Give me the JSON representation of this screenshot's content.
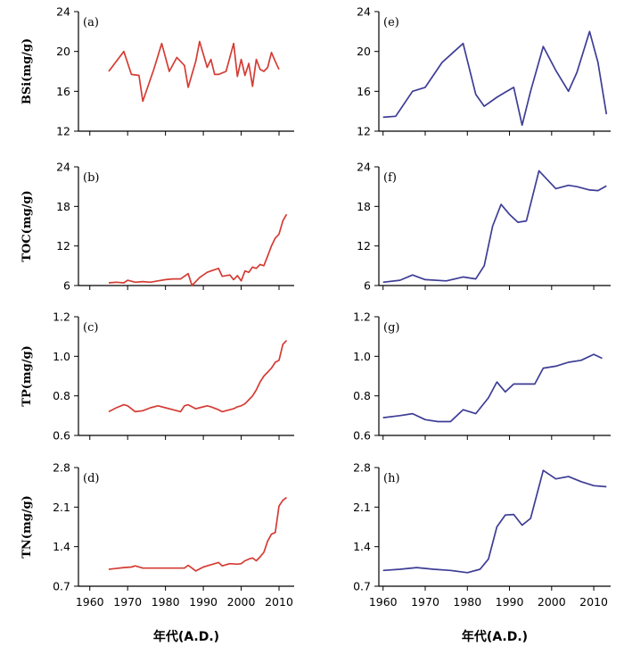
{
  "colors": {
    "red": "#d43c34",
    "blue": "#3d3d96",
    "axis": "#000000"
  },
  "chart_data": [
    {
      "id": "a",
      "type": "line",
      "letter": "(a)",
      "ylabel": "BSi(mg/g)",
      "xlabel": "",
      "color": "#d43c34",
      "ylim": [
        12,
        24
      ],
      "yticks": [
        "12",
        "16",
        "20",
        "24"
      ],
      "xlim": [
        1957,
        2014
      ],
      "xticks": [
        "1960",
        "1970",
        "1980",
        "1990",
        "2000",
        "2010"
      ],
      "x": [
        1965,
        1969,
        1971,
        1973,
        1974,
        1977,
        1979,
        1981,
        1983,
        1985,
        1986,
        1988,
        1989,
        1991,
        1992,
        1993,
        1994,
        1996,
        1998,
        1999,
        2000,
        2001,
        2002,
        2003,
        2004,
        2005,
        2006,
        2007,
        2008,
        2009,
        2010
      ],
      "y": [
        18.0,
        20.0,
        17.7,
        17.6,
        15.0,
        18.3,
        20.8,
        18.0,
        19.4,
        18.6,
        16.4,
        19.0,
        21.0,
        18.4,
        19.2,
        17.7,
        17.7,
        18.0,
        20.8,
        17.5,
        19.2,
        17.6,
        18.8,
        16.5,
        19.2,
        18.2,
        18.0,
        18.4,
        19.9,
        19.0,
        18.2
      ]
    },
    {
      "id": "b",
      "type": "line",
      "letter": "(b)",
      "ylabel": "TOC(mg/g)",
      "xlabel": "",
      "color": "#d43c34",
      "ylim": [
        6,
        24
      ],
      "yticks": [
        "6",
        "12",
        "18",
        "24"
      ],
      "xlim": [
        1957,
        2014
      ],
      "xticks": [
        "1960",
        "1970",
        "1980",
        "1990",
        "2000",
        "2010"
      ],
      "x": [
        1965,
        1967,
        1969,
        1970,
        1972,
        1974,
        1976,
        1978,
        1980,
        1982,
        1984,
        1986,
        1987,
        1989,
        1991,
        1992,
        1994,
        1995,
        1997,
        1998,
        1999,
        2000,
        2001,
        2002,
        2003,
        2004,
        2005,
        2006,
        2007,
        2008,
        2009,
        2010,
        2011,
        2012
      ],
      "y": [
        6.4,
        6.5,
        6.4,
        6.8,
        6.5,
        6.6,
        6.5,
        6.7,
        6.9,
        7.0,
        7.0,
        7.8,
        6.0,
        7.2,
        8.0,
        8.2,
        8.6,
        7.4,
        7.6,
        6.9,
        7.5,
        6.7,
        8.2,
        8.0,
        8.8,
        8.6,
        9.2,
        9.0,
        10.5,
        12.0,
        13.2,
        13.8,
        15.8,
        16.8
      ]
    },
    {
      "id": "c",
      "type": "line",
      "letter": "(c)",
      "ylabel": "TP(mg/g)",
      "xlabel": "",
      "color": "#d43c34",
      "ylim": [
        0.6,
        1.2
      ],
      "yticks": [
        "0.6",
        "0.8",
        "1.0",
        "1.2"
      ],
      "xlim": [
        1957,
        2014
      ],
      "xticks": [
        "1960",
        "1970",
        "1980",
        "1990",
        "2000",
        "2010"
      ],
      "x": [
        1965,
        1967,
        1969,
        1970,
        1972,
        1974,
        1976,
        1978,
        1980,
        1982,
        1984,
        1985,
        1986,
        1988,
        1989,
        1991,
        1992,
        1994,
        1995,
        1997,
        1998,
        1999,
        2000,
        2001,
        2002,
        2003,
        2004,
        2005,
        2006,
        2007,
        2008,
        2009,
        2010,
        2011,
        2012
      ],
      "y": [
        0.72,
        0.74,
        0.755,
        0.75,
        0.72,
        0.725,
        0.74,
        0.75,
        0.74,
        0.73,
        0.72,
        0.75,
        0.755,
        0.735,
        0.74,
        0.75,
        0.745,
        0.73,
        0.72,
        0.73,
        0.735,
        0.745,
        0.75,
        0.76,
        0.78,
        0.8,
        0.83,
        0.87,
        0.9,
        0.92,
        0.94,
        0.97,
        0.98,
        1.06,
        1.08
      ]
    },
    {
      "id": "d",
      "type": "line",
      "letter": "(d)",
      "ylabel": "TN(mg/g)",
      "xlabel": "年代(A.D.)",
      "color": "#d43c34",
      "ylim": [
        0.7,
        2.8
      ],
      "yticks": [
        "0.7",
        "1.4",
        "2.1",
        "2.8"
      ],
      "xlim": [
        1957,
        2014
      ],
      "xticks": [
        "1960",
        "1970",
        "1980",
        "1990",
        "2000",
        "2010"
      ],
      "x": [
        1965,
        1969,
        1971,
        1972,
        1974,
        1976,
        1978,
        1980,
        1982,
        1984,
        1985,
        1986,
        1987,
        1988,
        1990,
        1992,
        1994,
        1995,
        1997,
        1999,
        2000,
        2001,
        2002,
        2003,
        2004,
        2005,
        2006,
        2007,
        2008,
        2009,
        2010,
        2011,
        2012
      ],
      "y": [
        1.0,
        1.03,
        1.04,
        1.06,
        1.02,
        1.02,
        1.02,
        1.02,
        1.02,
        1.02,
        1.02,
        1.07,
        1.02,
        0.97,
        1.04,
        1.08,
        1.12,
        1.06,
        1.1,
        1.09,
        1.1,
        1.15,
        1.18,
        1.2,
        1.15,
        1.22,
        1.3,
        1.5,
        1.62,
        1.65,
        2.12,
        2.22,
        2.27
      ]
    },
    {
      "id": "e",
      "type": "line",
      "letter": "(e)",
      "ylabel": "",
      "xlabel": "",
      "color": "#3d3d96",
      "ylim": [
        12,
        24
      ],
      "yticks": [
        "12",
        "16",
        "20",
        "24"
      ],
      "xlim": [
        1959,
        2014
      ],
      "xticks": [
        "1960",
        "1970",
        "1980",
        "1990",
        "2000",
        "2010"
      ],
      "x": [
        1960,
        1963,
        1967,
        1970,
        1974,
        1979,
        1982,
        1984,
        1987,
        1989,
        1991,
        1993,
        1995,
        1998,
        2001,
        2004,
        2006,
        2009,
        2011,
        2013
      ],
      "y": [
        13.4,
        13.5,
        16.0,
        16.4,
        18.9,
        20.8,
        15.7,
        14.5,
        15.4,
        15.9,
        16.4,
        12.6,
        16.0,
        20.5,
        18.1,
        16.0,
        17.9,
        22.0,
        18.9,
        13.7
      ]
    },
    {
      "id": "f",
      "type": "line",
      "letter": "(f)",
      "ylabel": "",
      "xlabel": "",
      "color": "#3d3d96",
      "ylim": [
        6,
        24
      ],
      "yticks": [
        "6",
        "12",
        "18",
        "24"
      ],
      "xlim": [
        1959,
        2014
      ],
      "xticks": [
        "1960",
        "1970",
        "1980",
        "1990",
        "2000",
        "2010"
      ],
      "x": [
        1960,
        1964,
        1967,
        1970,
        1975,
        1979,
        1982,
        1984,
        1986,
        1988,
        1990,
        1992,
        1994,
        1997,
        2001,
        2004,
        2006,
        2009,
        2011,
        2013
      ],
      "y": [
        6.5,
        6.8,
        7.6,
        6.9,
        6.7,
        7.3,
        7.0,
        9.0,
        15.0,
        18.3,
        16.8,
        15.6,
        15.8,
        23.4,
        20.7,
        21.2,
        21.0,
        20.5,
        20.4,
        21.1
      ]
    },
    {
      "id": "g",
      "type": "line",
      "letter": "(g)",
      "ylabel": "",
      "xlabel": "",
      "color": "#3d3d96",
      "ylim": [
        0.6,
        1.2
      ],
      "yticks": [
        "0.6",
        "0.8",
        "1.0",
        "1.2"
      ],
      "xlim": [
        1959,
        2014
      ],
      "xticks": [
        "1960",
        "1970",
        "1980",
        "1990",
        "2000",
        "2010"
      ],
      "x": [
        1960,
        1964,
        1967,
        1970,
        1973,
        1976,
        1979,
        1982,
        1985,
        1987,
        1989,
        1991,
        1994,
        1996,
        1998,
        2001,
        2004,
        2007,
        2010,
        2012
      ],
      "y": [
        0.69,
        0.7,
        0.71,
        0.68,
        0.67,
        0.67,
        0.73,
        0.71,
        0.79,
        0.87,
        0.82,
        0.86,
        0.86,
        0.86,
        0.94,
        0.95,
        0.97,
        0.98,
        1.01,
        0.99
      ]
    },
    {
      "id": "h",
      "type": "line",
      "letter": "(h)",
      "ylabel": "",
      "xlabel": "年代(A.D.)",
      "color": "#3d3d96",
      "ylim": [
        0.7,
        2.8
      ],
      "yticks": [
        "0.7",
        "1.4",
        "2.1",
        "2.8"
      ],
      "xlim": [
        1959,
        2014
      ],
      "xticks": [
        "1960",
        "1970",
        "1980",
        "1990",
        "2000",
        "2010"
      ],
      "x": [
        1960,
        1964,
        1968,
        1972,
        1976,
        1980,
        1983,
        1985,
        1987,
        1989,
        1991,
        1993,
        1995,
        1998,
        2001,
        2004,
        2007,
        2010,
        2013
      ],
      "y": [
        0.98,
        1.0,
        1.03,
        1.0,
        0.98,
        0.94,
        1.0,
        1.18,
        1.75,
        1.96,
        1.97,
        1.78,
        1.9,
        2.75,
        2.6,
        2.64,
        2.55,
        2.48,
        2.46
      ]
    }
  ]
}
